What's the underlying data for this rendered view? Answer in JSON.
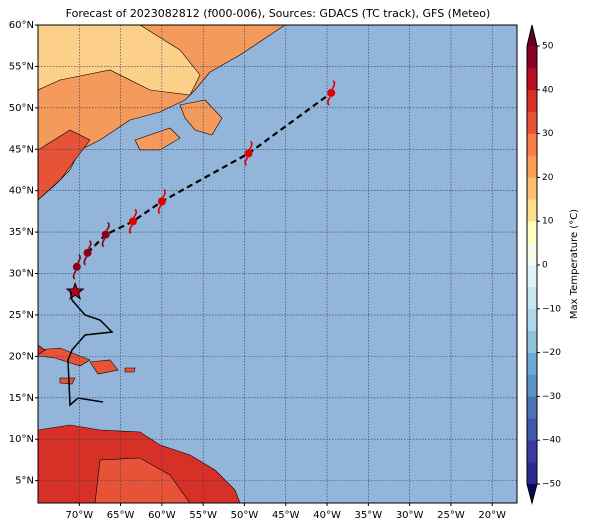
{
  "chart_data": {
    "type": "map",
    "title": "Forecast of 2023082812 (f000-006), Sources: GDACS (TC track), GFS (Meteo)",
    "xlim": [
      -75,
      -17
    ],
    "ylim": [
      2.3,
      60
    ],
    "xticks": [
      {
        "value": -70,
        "label": "70°W"
      },
      {
        "value": -65,
        "label": "65°W"
      },
      {
        "value": -60,
        "label": "60°W"
      },
      {
        "value": -55,
        "label": "55°W"
      },
      {
        "value": -50,
        "label": "50°W"
      },
      {
        "value": -45,
        "label": "45°W"
      },
      {
        "value": -40,
        "label": "40°W"
      },
      {
        "value": -35,
        "label": "35°W"
      },
      {
        "value": -30,
        "label": "30°W"
      },
      {
        "value": -25,
        "label": "25°W"
      },
      {
        "value": -20,
        "label": "20°W"
      }
    ],
    "yticks": [
      {
        "value": 5,
        "label": "5°N"
      },
      {
        "value": 10,
        "label": "10°N"
      },
      {
        "value": 15,
        "label": "15°N"
      },
      {
        "value": 20,
        "label": "20°N"
      },
      {
        "value": 25,
        "label": "25°N"
      },
      {
        "value": 30,
        "label": "30°N"
      },
      {
        "value": 35,
        "label": "35°N"
      },
      {
        "value": 40,
        "label": "40°N"
      },
      {
        "value": 45,
        "label": "45°N"
      },
      {
        "value": 50,
        "label": "50°N"
      },
      {
        "value": 55,
        "label": "55°N"
      },
      {
        "value": 60,
        "label": "60°N"
      }
    ],
    "grid": true,
    "track": {
      "lon": [
        -70.5,
        -70.3,
        -69,
        -66.8,
        -63.5,
        -60,
        -49.5,
        -39.5
      ],
      "lat": [
        27.8,
        30.8,
        32.5,
        34.7,
        36.3,
        38.7,
        44.5,
        51.8
      ]
    },
    "colorbar": {
      "label": "Max Temperature (°C)",
      "lim": [
        -50,
        50
      ],
      "ticks": [
        {
          "value": 50,
          "label": "50"
        },
        {
          "value": 40,
          "label": "40"
        },
        {
          "value": 30,
          "label": "30"
        },
        {
          "value": 20,
          "label": "20"
        },
        {
          "value": 10,
          "label": "10"
        },
        {
          "value": 0,
          "label": "0"
        },
        {
          "value": -10,
          "label": "−10"
        },
        {
          "value": -20,
          "label": "−20"
        },
        {
          "value": -30,
          "label": "−30"
        },
        {
          "value": -40,
          "label": "−40"
        },
        {
          "value": -50,
          "label": "−50"
        }
      ],
      "colors": [
        "#2a2a8f",
        "#3a3ba0",
        "#4158a8",
        "#4a74b4",
        "#5b93c4",
        "#6ea9d1",
        "#8ec3de",
        "#abd9e9",
        "#c8e8f0",
        "#e0f3f8",
        "#f4fbe8",
        "#ffffbf",
        "#fee090",
        "#fdbf71",
        "#fd9e54",
        "#f67c4a",
        "#e75337",
        "#d73027",
        "#b50f26",
        "#8a0025"
      ],
      "under": "#0a0a5a",
      "over": "#67001f"
    }
  }
}
